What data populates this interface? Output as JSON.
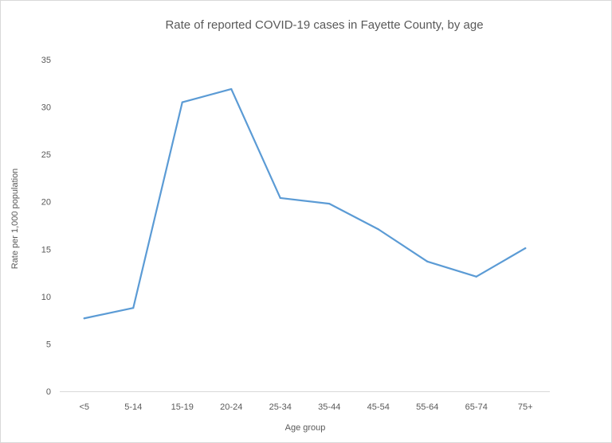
{
  "chart_data": {
    "type": "line",
    "title": "Rate of reported COVID-19 cases in Fayette County, by age",
    "xlabel": "Age group",
    "ylabel": "Rate per 1,000 population",
    "categories": [
      "<5",
      "5-14",
      "15-19",
      "20-24",
      "25-34",
      "35-44",
      "45-54",
      "55-64",
      "65-74",
      "75+"
    ],
    "series": [
      {
        "values": [
          7.7,
          8.8,
          30.5,
          31.9,
          20.4,
          19.8,
          17.1,
          13.7,
          12.1,
          15.1
        ]
      }
    ],
    "ylim": [
      0,
      35
    ],
    "yticks": [
      0,
      5,
      10,
      15,
      20,
      25,
      30,
      35
    ],
    "grid": false,
    "legend": "none",
    "line_color": "#5B9BD5"
  }
}
